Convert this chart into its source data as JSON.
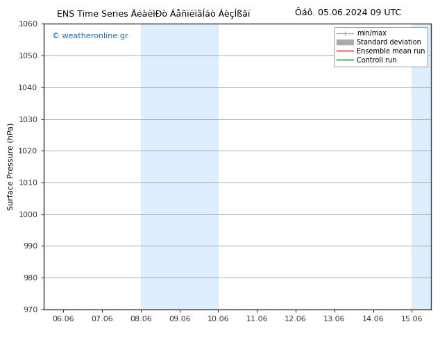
{
  "title_left": "ENS Time Series ÄéàèìÐò ÁåñïëïãÍáò ÁèçÍßâï",
  "title_right": "Ôáô. 05.06.2024 09 UTC",
  "ylabel": "Surface Pressure (hPa)",
  "ylim": [
    970,
    1060
  ],
  "yticks": [
    970,
    980,
    990,
    1000,
    1010,
    1020,
    1030,
    1040,
    1050,
    1060
  ],
  "xtick_labels": [
    "06.06",
    "07.06",
    "08.06",
    "09.06",
    "10.06",
    "11.06",
    "12.06",
    "13.06",
    "14.06",
    "15.06"
  ],
  "xtick_positions": [
    0,
    1,
    2,
    3,
    4,
    5,
    6,
    7,
    8,
    9
  ],
  "xlim_left": -0.5,
  "xlim_right": 9.5,
  "shade_bands": [
    {
      "x_start": 2.0,
      "x_end": 4.0,
      "color": "#ddeeff"
    },
    {
      "x_start": 9.0,
      "x_end": 9.5,
      "color": "#ddeeff"
    }
  ],
  "watermark": "© weatheronline.gr",
  "watermark_color": "#1a6bc0",
  "legend_items": [
    {
      "label": "min/max",
      "color": "#aaaaaa",
      "lw": 1.0
    },
    {
      "label": "Standard deviation",
      "color": "#aaaaaa",
      "lw": 5
    },
    {
      "label": "Ensemble mean run",
      "color": "red",
      "lw": 1.0
    },
    {
      "label": "Controll run",
      "color": "green",
      "lw": 1.0
    }
  ],
  "bg_color": "#ffffff",
  "axes_bg_color": "#ffffff",
  "grid_color": "#999999",
  "tick_label_fontsize": 8,
  "axis_label_fontsize": 8,
  "title_fontsize": 9,
  "legend_fontsize": 7,
  "watermark_fontsize": 8
}
